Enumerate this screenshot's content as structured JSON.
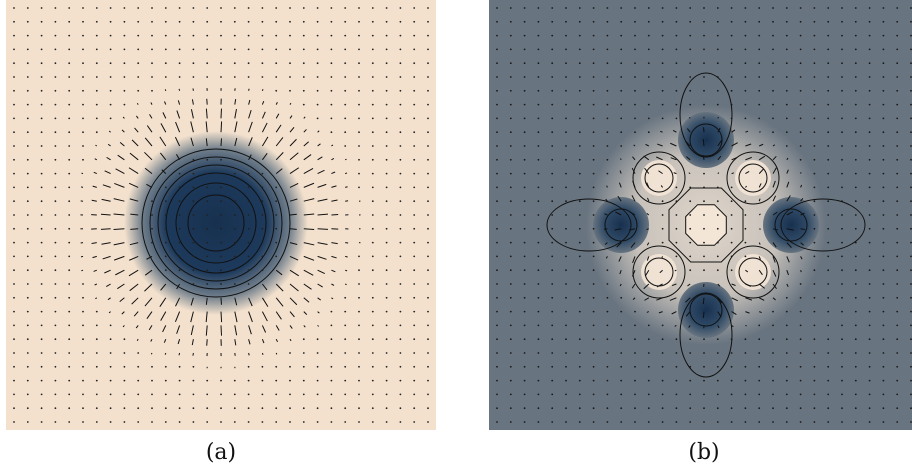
{
  "panels": [
    {
      "id": "a",
      "caption": "(a)",
      "background": "#f3e1cd",
      "core": "#17304f"
    },
    {
      "id": "b",
      "caption": "(b)",
      "background": "#687480",
      "core": "#17304f",
      "highlight": "#f4e6d6"
    }
  ]
}
